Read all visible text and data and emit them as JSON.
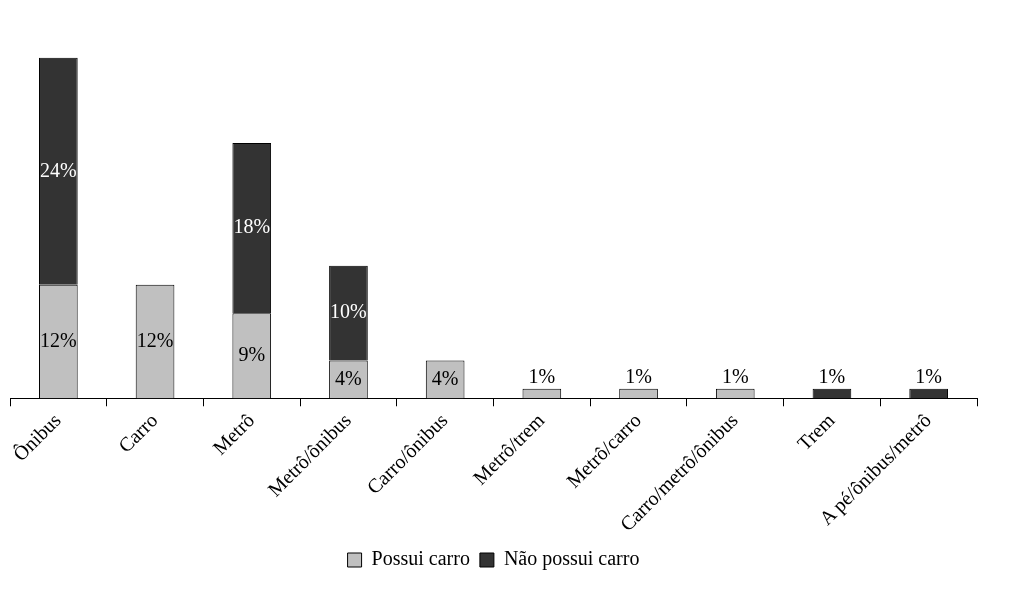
{
  "chart_data": {
    "type": "bar",
    "stacked": true,
    "categories": [
      "Ônibus",
      "Carro",
      "Metrô",
      "Metrô/ônibus",
      "Carro/ônibus",
      "Metrô/trem",
      "Metrô/carro",
      "Carro/metrô/ônibus",
      "Trem",
      "A pé/ônibus/metrô"
    ],
    "series": [
      {
        "name": "Possui carro",
        "color": "#c0c0c0",
        "values": [
          12,
          12,
          9,
          4,
          4,
          1,
          1,
          1,
          null,
          null
        ],
        "value_labels": [
          "12%",
          "12%",
          "9%",
          "4%",
          "4%",
          "1%",
          "1%",
          "1%",
          null,
          null
        ]
      },
      {
        "name": "Não possui carro",
        "color": "#333333",
        "values": [
          24,
          null,
          18,
          10,
          null,
          null,
          null,
          null,
          1,
          1
        ],
        "value_labels": [
          "24%",
          null,
          "18%",
          "10%",
          null,
          null,
          null,
          null,
          "1%",
          "1%"
        ]
      }
    ],
    "legend": "bottom",
    "grid": false
  }
}
